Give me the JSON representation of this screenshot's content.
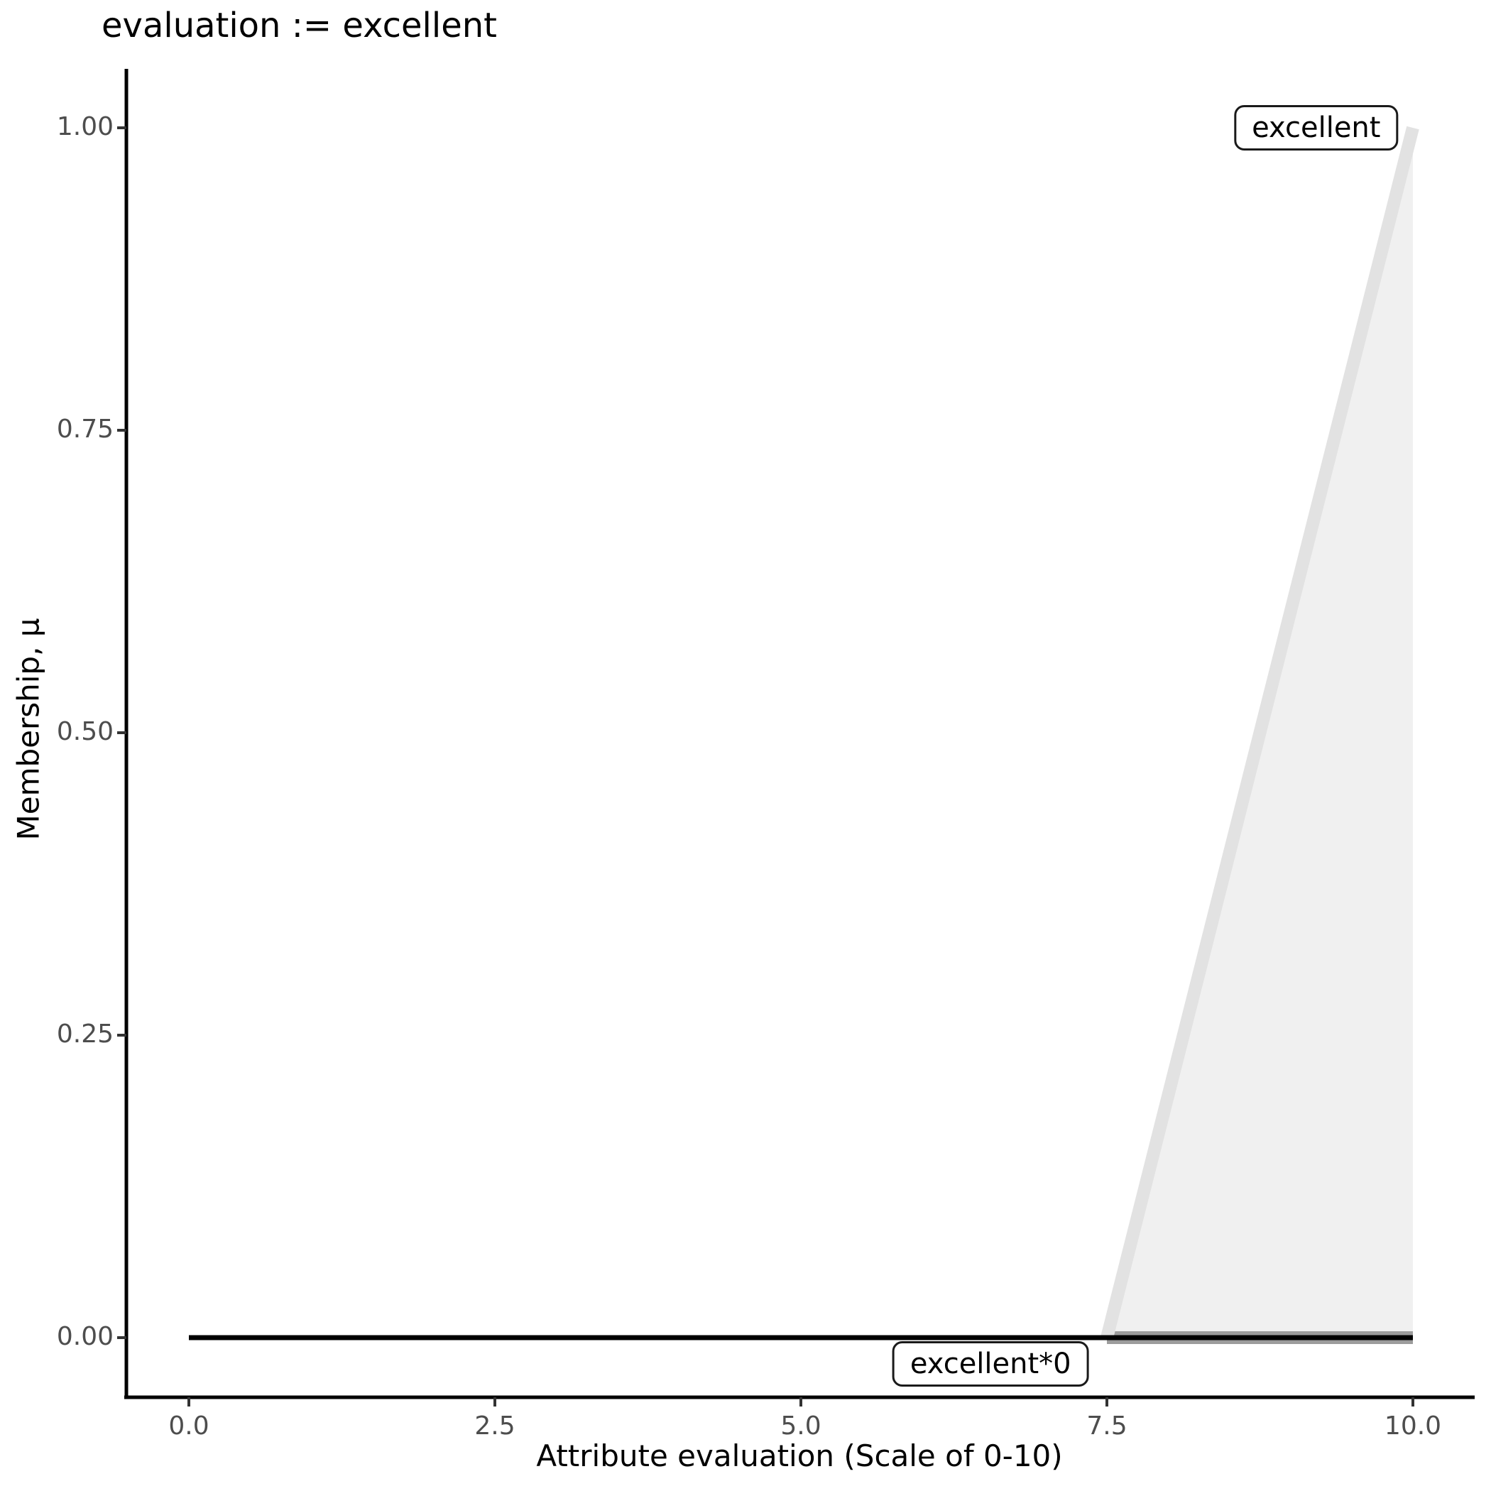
{
  "title": "evaluation := excellent",
  "axes": {
    "x": {
      "label": "Attribute evaluation (Scale of 0-10)",
      "tick_labels": [
        "0.0",
        "2.5",
        "5.0",
        "7.5",
        "10.0"
      ],
      "tick_values": [
        0,
        2.5,
        5,
        7.5,
        10
      ],
      "range": [
        0,
        10
      ]
    },
    "y": {
      "label": "Membership, μ",
      "tick_labels": [
        "0.00",
        "0.25",
        "0.50",
        "0.75",
        "1.00"
      ],
      "tick_values": [
        0,
        0.25,
        0.5,
        0.75,
        1
      ],
      "range": [
        0,
        1
      ]
    }
  },
  "colors": {
    "set_fill": "#f0f0f0",
    "set_line": "#e2e2e2",
    "set_baseline": "#9c9c9c",
    "modified_line": "#000000",
    "spine": "#000000",
    "tick_mark": "#333333",
    "tick_label": "#4d4d4d",
    "annotation_border": "#1a1a1a",
    "annotation_bg": "#ffffff"
  },
  "chart_data": {
    "type": "line",
    "title": "evaluation := excellent",
    "xlabel": "Attribute evaluation (Scale of 0-10)",
    "ylabel": "Membership, μ",
    "xlim": [
      0,
      10
    ],
    "ylim": [
      0,
      1
    ],
    "x_ticks": [
      0,
      2.5,
      5,
      7.5,
      10
    ],
    "y_ticks": [
      0,
      0.25,
      0.5,
      0.75,
      1
    ],
    "grid": false,
    "legend": "none",
    "series": [
      {
        "name": "excellent",
        "role": "fuzzy-set",
        "x": [
          7.5,
          10
        ],
        "y": [
          0,
          1
        ],
        "line_color": "#e2e2e2",
        "line_width": 18,
        "area_fill": "#f0f0f0",
        "baseline": {
          "x": [
            7.5,
            10
          ],
          "y": [
            0,
            0
          ],
          "color": "#9c9c9c",
          "width": 18
        }
      },
      {
        "name": "excellent*0",
        "role": "modified-set",
        "x": [
          0,
          10
        ],
        "y": [
          0,
          0
        ],
        "line_color": "#000000",
        "line_width": 7
      }
    ],
    "annotations": [
      {
        "text": "excellent",
        "x": 9.21,
        "y": 1.0
      },
      {
        "text": "excellent*0",
        "x": 6.55,
        "y": -0.022
      }
    ]
  }
}
